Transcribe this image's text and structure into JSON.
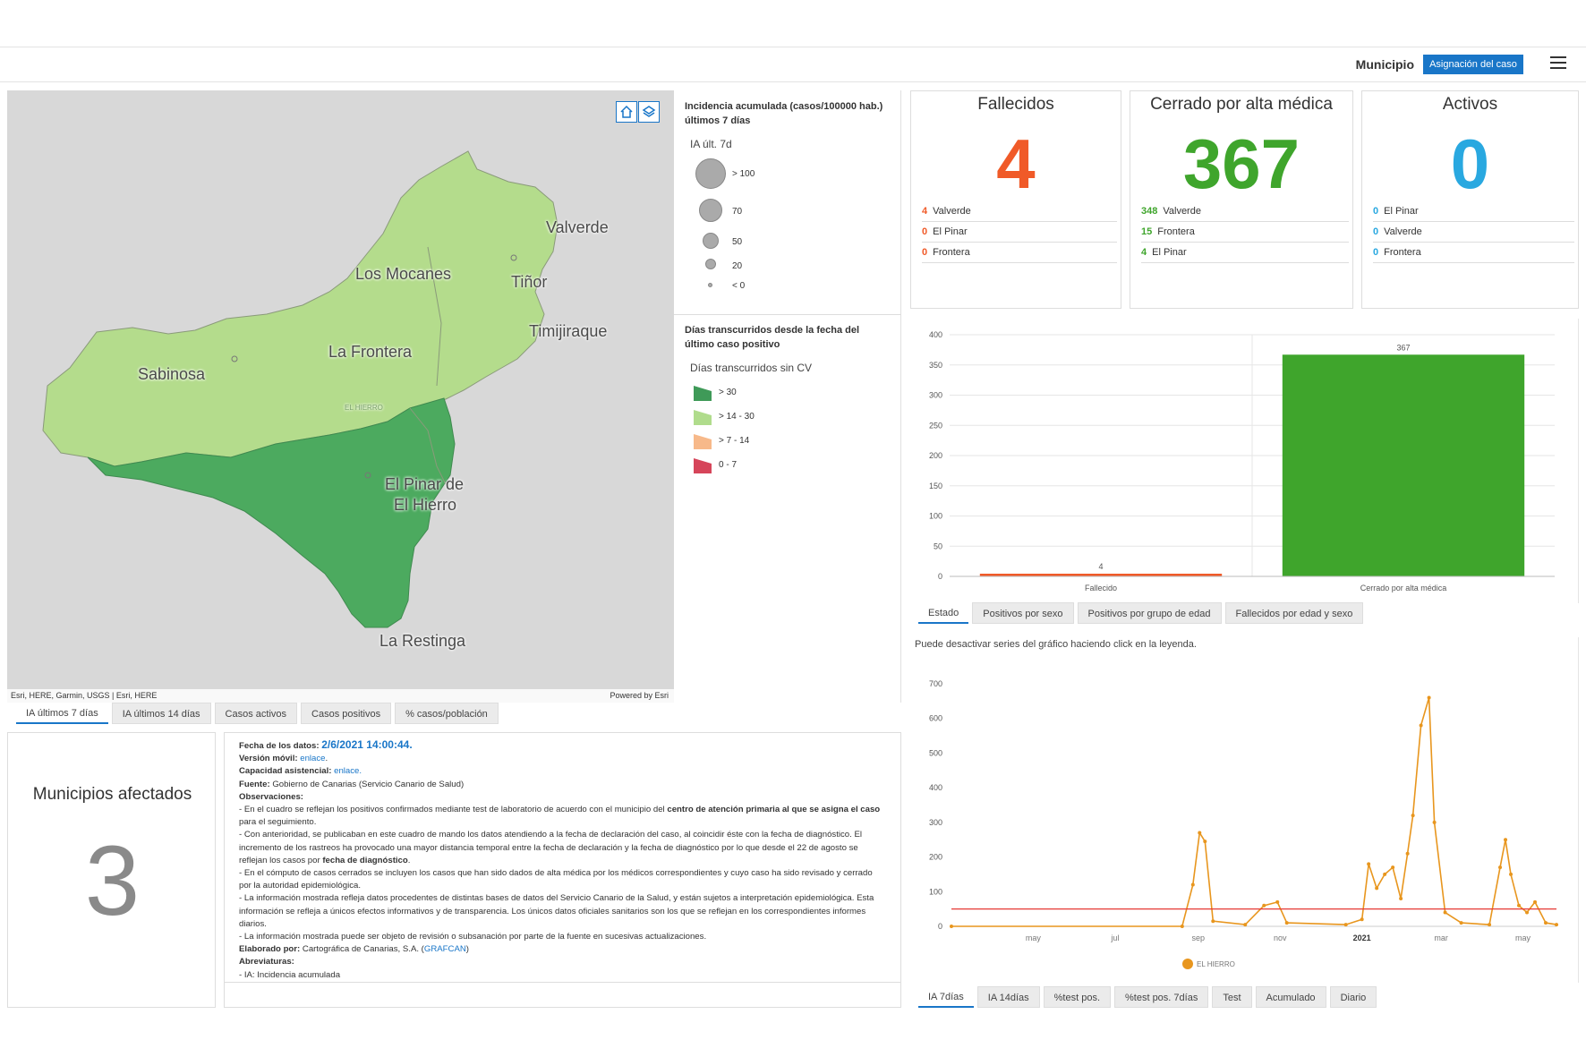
{
  "header": {
    "label": "Municipio",
    "button_label": "Asignación del caso",
    "menu_icon": "hamburger-icon"
  },
  "map": {
    "labels": {
      "valverde": "Valverde",
      "los_mocanes": "Los Mocanes",
      "tinor": "Tiñor",
      "timijiraque": "Timijiraque",
      "la_frontera": "La Frontera",
      "sabinosa": "Sabinosa",
      "el_hierro_small": "EL HIERRO",
      "el_pinar_1": "El Pinar de",
      "el_pinar_2": "El Hierro",
      "la_restinga": "La Restinga"
    },
    "attribution_left": "Esri, HERE, Garmin, USGS | Esri, HERE",
    "attribution_right": "Powered by Esri",
    "colors": {
      "light": "#b4dc8c",
      "dark": "#4caa5f",
      "background": "#d8d8d8"
    }
  },
  "legend": {
    "ia_title": "Incidencia acumulada (casos/100000 hab.) últimos 7 días",
    "ia_sub": "IA últ. 7d",
    "ia_items": [
      "> 100",
      "70",
      "50",
      "20",
      "< 0"
    ],
    "dias_title": "Días transcurridos desde la fecha del último caso positivo",
    "dias_sub": "Días transcurridos sin CV",
    "dias_items": [
      {
        "label": "> 30",
        "color": "#3f9a58"
      },
      {
        "label": "> 14 - 30",
        "color": "#b0dc8c"
      },
      {
        "label": "> 7 - 14",
        "color": "#f7b98a"
      },
      {
        "label": "0 - 7",
        "color": "#d6455a"
      }
    ]
  },
  "map_tabs": [
    "IA últimos 7 días",
    "IA últimos 14 días",
    "Casos activos",
    "Casos positivos",
    "% casos/población"
  ],
  "municipios": {
    "title": "Municipios afectados",
    "value": "3"
  },
  "notes": {
    "fecha_label": "Fecha de los datos:",
    "fecha_value": "2/6/2021 14:00:44.",
    "version_label": "Versión móvil:",
    "version_link": "enlace",
    "capacidad_label": "Capacidad asistencial:",
    "capacidad_link": "enlace.",
    "fuente_label": "Fuente:",
    "fuente_value": "Gobierno de Canarias (Servicio Canario de Salud)",
    "obs_label": "Observaciones:",
    "obs1a": "- En el cuadro se reflejan los positivos confirmados mediante test de laboratorio de acuerdo con el municipio del ",
    "obs1b": "centro de atención primaria al que se asigna el caso",
    "obs1c": " para el seguimiento.",
    "obs2a": "- Con anterioridad, se publicaban en este cuadro de mando los datos atendiendo a la fecha de declaración del caso, al coincidir éste con la fecha de diagnóstico. El incremento de los rastreos ha provocado una mayor distancia temporal entre la fecha de declaración y la fecha de diagnóstico por lo que desde el 22 de agosto se reflejan los casos por ",
    "obs2b": "fecha de diagnóstico",
    "obs2c": ".",
    "obs3": "- En el cómputo de casos cerrados se incluyen los casos que han sido dados de alta médica por los médicos correspondientes y cuyo caso ha sido revisado y cerrado por la autoridad epidemiológica.",
    "obs4": "- La información mostrada refleja datos procedentes de distintas bases de datos del Servicio Canario de la Salud, y están sujetos a interpretación epidemiológica. Esta información se refleja a únicos efectos informativos y de transparencia. Los únicos datos oficiales sanitarios son los que se reflejan en los correspondientes informes diarios.",
    "obs5": "- La información mostrada puede ser objeto de revisión o subsanación por parte de la fuente en sucesivas actualizaciones.",
    "elab_label": "Elaborado por:",
    "elab_value": "Cartográfica de Canarias, S.A. (",
    "elab_link": "GRAFCAN",
    "elab_end": ")",
    "abrev_label": "Abreviaturas:",
    "abrev_value": "- IA: Incidencia acumulada"
  },
  "cards": [
    {
      "title": "Fallecidos",
      "value": "4",
      "color": "#f05a28",
      "rows": [
        {
          "n": "4",
          "name": "Valverde"
        },
        {
          "n": "0",
          "name": "El Pinar"
        },
        {
          "n": "0",
          "name": "Frontera"
        }
      ]
    },
    {
      "title": "Cerrado por alta médica",
      "value": "367",
      "color": "#3fa52c",
      "rows": [
        {
          "n": "348",
          "name": "Valverde"
        },
        {
          "n": "15",
          "name": "Frontera"
        },
        {
          "n": "4",
          "name": "El Pinar"
        }
      ]
    },
    {
      "title": "Activos",
      "value": "0",
      "color": "#29a8e0",
      "rows": [
        {
          "n": "0",
          "name": "El Pinar"
        },
        {
          "n": "0",
          "name": "Valverde"
        },
        {
          "n": "0",
          "name": "Frontera"
        }
      ]
    }
  ],
  "chart_data": [
    {
      "type": "bar",
      "categories": [
        "Fallecido",
        "Cerrado por alta médica"
      ],
      "values": [
        4,
        367
      ],
      "colors": [
        "#f05a28",
        "#3fa52c"
      ],
      "ylim": [
        0,
        400
      ],
      "yticks": [
        0,
        50,
        100,
        150,
        200,
        250,
        300,
        350,
        400
      ],
      "data_labels": [
        "4",
        "367"
      ],
      "grid": true
    },
    {
      "type": "line",
      "series": [
        {
          "name": "EL HIERRO",
          "color": "#e8961e",
          "x": [
            "2020-03-01",
            "2020-08-20",
            "2020-08-28",
            "2020-09-02",
            "2020-09-06",
            "2020-09-12",
            "2020-10-06",
            "2020-10-20",
            "2020-10-30",
            "2020-11-06",
            "2020-12-20",
            "2021-01-01",
            "2021-01-06",
            "2021-01-12",
            "2021-01-18",
            "2021-01-24",
            "2021-01-30",
            "2021-02-04",
            "2021-02-08",
            "2021-02-14",
            "2021-02-20",
            "2021-02-24",
            "2021-03-04",
            "2021-03-16",
            "2021-04-06",
            "2021-04-14",
            "2021-04-18",
            "2021-04-22",
            "2021-04-28",
            "2021-05-04",
            "2021-05-10",
            "2021-05-18",
            "2021-05-26"
          ],
          "y": [
            0,
            0,
            120,
            270,
            245,
            15,
            5,
            60,
            70,
            10,
            5,
            20,
            180,
            110,
            150,
            170,
            80,
            210,
            320,
            580,
            660,
            300,
            40,
            10,
            5,
            170,
            250,
            150,
            60,
            40,
            70,
            10,
            5
          ]
        },
        {
          "name": "",
          "color": "#e53935",
          "x": [
            "2020-03-01",
            "2021-05-26"
          ],
          "y": [
            50,
            50
          ]
        }
      ],
      "ylim": [
        0,
        700
      ],
      "yticks": [
        0,
        100,
        200,
        300,
        400,
        500,
        600,
        700
      ],
      "xticks": [
        "may",
        "jul",
        "sep",
        "nov",
        "2021",
        "mar",
        "may"
      ],
      "legend": "bottom"
    }
  ],
  "bar_tabs": [
    "Estado",
    "Positivos por sexo",
    "Positivos por grupo de edad",
    "Fallecidos por edad y sexo"
  ],
  "line_note": "Puede desactivar series del gráfico haciendo click en la leyenda.",
  "line_tabs": [
    "IA 7días",
    "IA 14días",
    "%test pos.",
    "%test pos. 7días",
    "Test",
    "Acumulado",
    "Diario"
  ]
}
